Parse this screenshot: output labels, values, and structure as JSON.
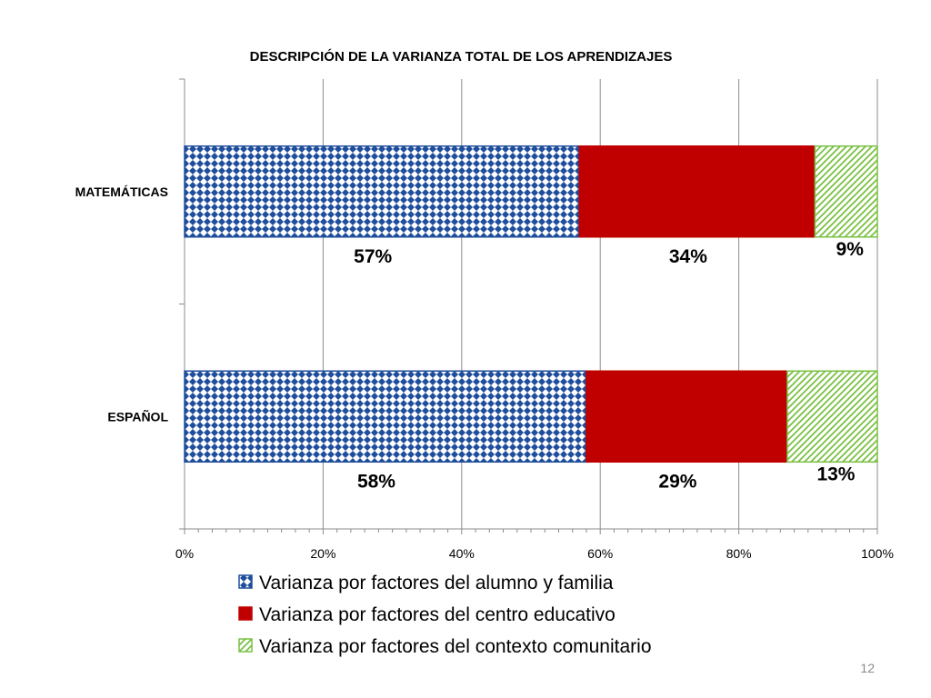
{
  "slide_number": "12",
  "chart_data": {
    "type": "bar",
    "orientation": "horizontal",
    "stacked": "percent",
    "title": "DESCRIPCIÓN DE LA VARIANZA TOTAL DE LOS APRENDIZAJES",
    "categories": [
      "MATEMÁTICAS",
      "ESPAÑOL"
    ],
    "series": [
      {
        "name": "Varianza por factores del alumno y familia",
        "values": [
          57,
          58
        ],
        "labels": [
          "57%",
          "58%"
        ],
        "color": "#1f4e9c",
        "pattern": "diamond-grid"
      },
      {
        "name": "Varianza por factores del centro educativo",
        "values": [
          34,
          29
        ],
        "labels": [
          "34%",
          "29%"
        ],
        "color": "#c00000",
        "pattern": "solid"
      },
      {
        "name": "Varianza por factores del contexto comunitario",
        "values": [
          9,
          13
        ],
        "labels": [
          "9%",
          "13%"
        ],
        "color": "#7ac143",
        "pattern": "diagonal-stripes"
      }
    ],
    "xlim": [
      0,
      100
    ],
    "xticks": [
      "0%",
      "20%",
      "40%",
      "60%",
      "80%",
      "100%"
    ],
    "grid": true,
    "legend_position": "bottom"
  }
}
